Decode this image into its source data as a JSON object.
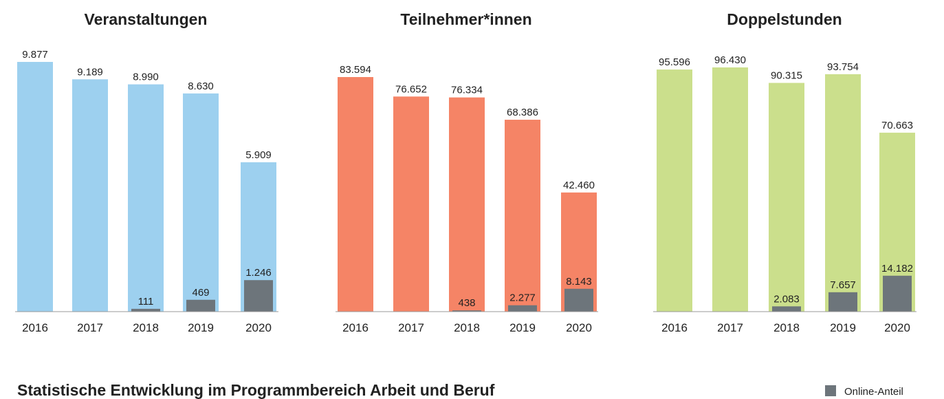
{
  "title": "Statistische Entwicklung im Programmbereich Arbeit und Beruf",
  "legend": {
    "label": "Online-Anteil",
    "color": "#6d757b"
  },
  "chart_data": [
    {
      "type": "bar",
      "title": "Veranstaltungen",
      "categories": [
        "2016",
        "2017",
        "2018",
        "2019",
        "2020"
      ],
      "series": [
        {
          "color": "#9dd0ef",
          "values": [
            9877,
            9189,
            8990,
            8630,
            5909
          ],
          "value_labels": [
            "9.877",
            "9.189",
            "8.990",
            "8.630",
            "5.909"
          ]
        },
        {
          "color": "#6d757b",
          "values": [
            null,
            null,
            111,
            469,
            1246
          ],
          "value_labels": [
            null,
            null,
            "111",
            "469",
            "1.246"
          ]
        }
      ]
    },
    {
      "type": "bar",
      "title": "Teilnehmer*innen",
      "categories": [
        "2016",
        "2017",
        "2018",
        "2019",
        "2020"
      ],
      "series": [
        {
          "color": "#f58466",
          "values": [
            83594,
            76652,
            76334,
            68386,
            42460
          ],
          "value_labels": [
            "83.594",
            "76.652",
            "76.334",
            "68.386",
            "42.460"
          ]
        },
        {
          "color": "#6d757b",
          "values": [
            null,
            null,
            438,
            2277,
            8143
          ],
          "value_labels": [
            null,
            null,
            "438",
            "2.277",
            "8.143"
          ]
        }
      ]
    },
    {
      "type": "bar",
      "title": "Doppelstunden",
      "categories": [
        "2016",
        "2017",
        "2018",
        "2019",
        "2020"
      ],
      "series": [
        {
          "color": "#cbdf8c",
          "values": [
            95596,
            96430,
            90315,
            93754,
            70663
          ],
          "value_labels": [
            "95.596",
            "96.430",
            "90.315",
            "93.754",
            "70.663"
          ]
        },
        {
          "color": "#6d757b",
          "values": [
            null,
            null,
            2083,
            7657,
            14182
          ],
          "value_labels": [
            null,
            null,
            "2.083",
            "7.657",
            "14.182"
          ]
        }
      ]
    }
  ]
}
